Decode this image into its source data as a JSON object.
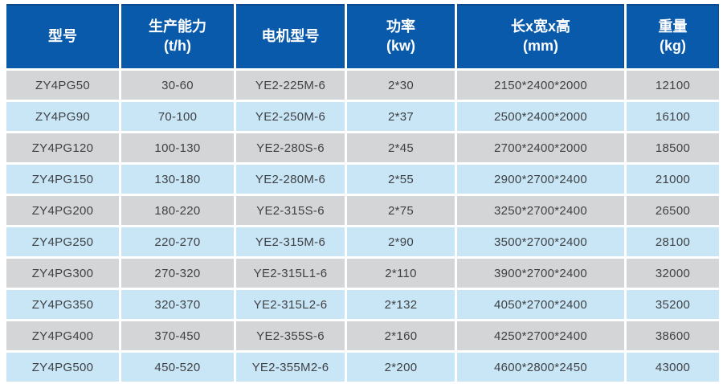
{
  "table": {
    "name": "product-specification-table",
    "columns": [
      {
        "key": "model",
        "label": "型号"
      },
      {
        "key": "capacity",
        "label": "生产能力\n(t/h)"
      },
      {
        "key": "motor",
        "label": "电机型号"
      },
      {
        "key": "power",
        "label": "功率\n(kw)"
      },
      {
        "key": "size",
        "label": "长x宽x高\n(mm)"
      },
      {
        "key": "weight",
        "label": "重量\n(kg)"
      }
    ],
    "rows": [
      [
        "ZY4PG50",
        "30-60",
        "YE2-225M-6",
        "2*30",
        "2150*2400*2000",
        "12100"
      ],
      [
        "ZY4PG90",
        "70-100",
        "YE2-250M-6",
        "2*37",
        "2500*2400*2000",
        "16100"
      ],
      [
        "ZY4PG120",
        "100-130",
        "YE2-280S-6",
        "2*45",
        "2700*2400*2000",
        "18500"
      ],
      [
        "ZY4PG150",
        "130-180",
        "YE2-280M-6",
        "2*55",
        "2900*2700*2400",
        "21000"
      ],
      [
        "ZY4PG200",
        "180-220",
        "YE2-315S-6",
        "2*75",
        "3250*2700*2400",
        "26500"
      ],
      [
        "ZY4PG250",
        "220-270",
        "YE2-315M-6",
        "2*90",
        "3500*2700*2400",
        "28100"
      ],
      [
        "ZY4PG300",
        "270-320",
        "YE2-315L1-6",
        "2*110",
        "3900*2700*2400",
        "32000"
      ],
      [
        "ZY4PG350",
        "320-370",
        "YE2-315L2-6",
        "2*132",
        "4050*2700*2400",
        "35200"
      ],
      [
        "ZY4PG400",
        "370-450",
        "YE2-355S-6",
        "2*160",
        "4250*2700*2400",
        "38600"
      ],
      [
        "ZY4PG500",
        "450-520",
        "YE2-355M2-6",
        "2*200",
        "4600*2800*2450",
        "43000"
      ]
    ],
    "colors": {
      "header_bg": "#0a5aab",
      "header_text": "#ffffff",
      "row_gray": "#d4d5d6",
      "row_blue": "#c9e6f7",
      "body_text": "#3f4245"
    }
  }
}
